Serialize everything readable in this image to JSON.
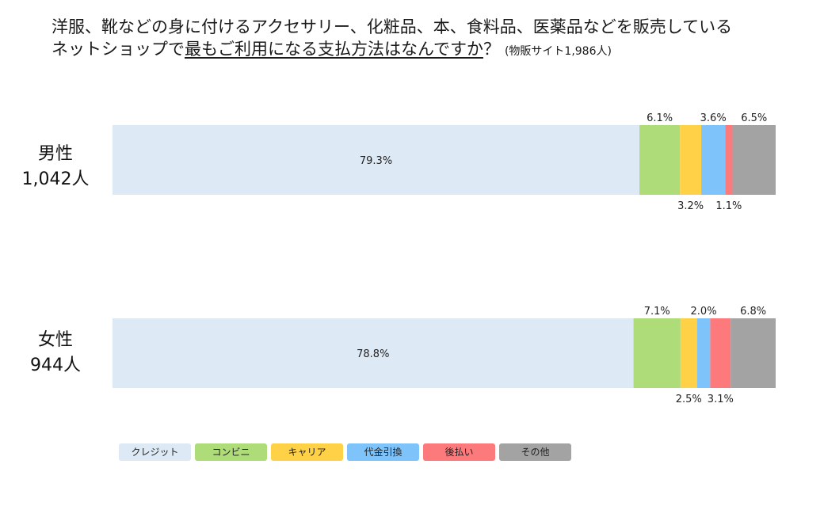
{
  "title": {
    "line1": "洋服、靴などの身に付けるアクセサリー、化粧品、本、食料品、医薬品などを販売している",
    "line2_prefix": "ネットショップで",
    "line2_underlined": "最もご利用になる支払方法はなんですか",
    "line2_suffix": "？",
    "note": "(物販サイト1,986人)"
  },
  "rows": [
    {
      "name": "男性",
      "count": "1,042人"
    },
    {
      "name": "女性",
      "count": "944人"
    }
  ],
  "colors": {
    "クレジット": "#dde9f5",
    "コンビニ": "#addc79",
    "キャリア": "#fed147",
    "代金引換": "#7fc3fb",
    "後払い": "#fd7a7c",
    "その他": "#a3a3a3"
  },
  "chart_data": {
    "type": "bar",
    "orientation": "horizontal",
    "stacked": true,
    "unit": "%",
    "categories": [
      "男性",
      "女性"
    ],
    "series": [
      {
        "name": "クレジット",
        "values": [
          79.3,
          78.8
        ],
        "labels": [
          "79.3%",
          "78.8%"
        ]
      },
      {
        "name": "コンビニ",
        "values": [
          6.1,
          7.1
        ],
        "labels": [
          "6.1%",
          "7.1%"
        ]
      },
      {
        "name": "キャリア",
        "values": [
          3.2,
          2.5
        ],
        "labels": [
          "3.2%",
          "2.5%"
        ]
      },
      {
        "name": "代金引換",
        "values": [
          3.6,
          2.0
        ],
        "labels": [
          "3.6%",
          "2.0%"
        ]
      },
      {
        "name": "後払い",
        "values": [
          1.1,
          3.1
        ],
        "labels": [
          "1.1%",
          "3.1%"
        ]
      },
      {
        "name": "その他",
        "values": [
          6.5,
          6.8
        ],
        "labels": [
          "6.5%",
          "6.8%"
        ]
      }
    ],
    "legend_position": "bottom-left",
    "grid": false
  }
}
